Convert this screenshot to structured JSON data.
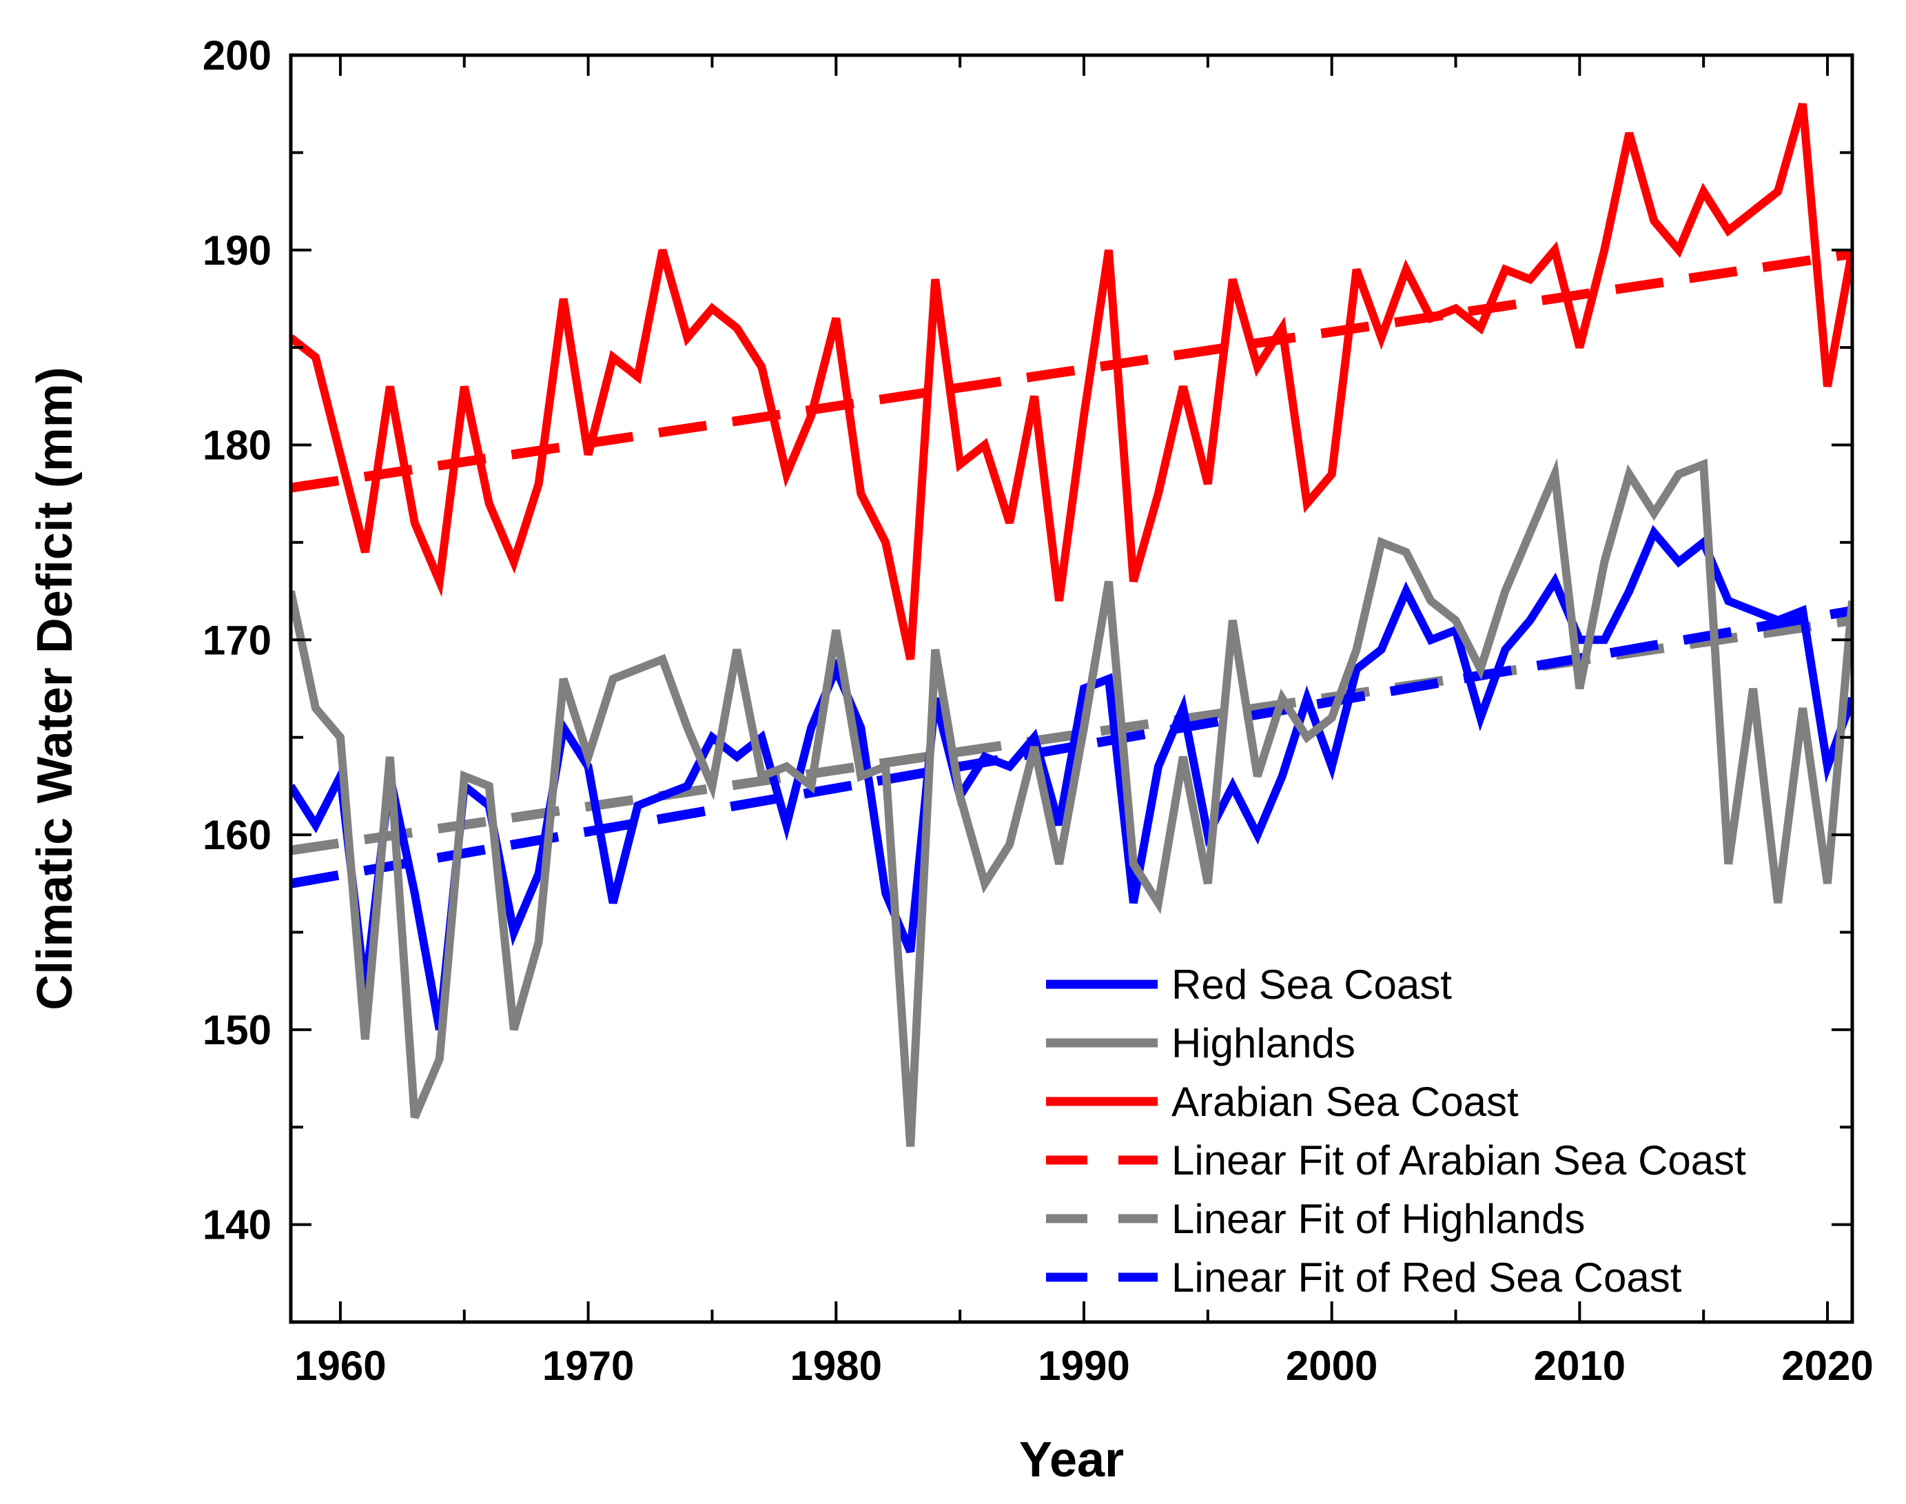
{
  "chart_data": {
    "type": "line",
    "title": "",
    "xlabel": "Year",
    "ylabel": "Climatic Water Deficit (mm)",
    "xlim": [
      1958,
      2021
    ],
    "ylim": [
      135,
      200
    ],
    "x_ticks": [
      1960,
      1970,
      1980,
      1990,
      2000,
      2010,
      2020
    ],
    "y_ticks": [
      140,
      150,
      160,
      170,
      180,
      190,
      200
    ],
    "grid": false,
    "legend_position": "bottom-right",
    "x": [
      1958,
      1959,
      1960,
      1961,
      1962,
      1963,
      1964,
      1965,
      1966,
      1967,
      1968,
      1969,
      1970,
      1971,
      1972,
      1973,
      1974,
      1975,
      1976,
      1977,
      1978,
      1979,
      1980,
      1981,
      1982,
      1983,
      1984,
      1985,
      1986,
      1987,
      1988,
      1989,
      1990,
      1991,
      1992,
      1993,
      1994,
      1995,
      1996,
      1997,
      1998,
      1999,
      2000,
      2001,
      2002,
      2003,
      2004,
      2005,
      2006,
      2007,
      2008,
      2009,
      2010,
      2011,
      2012,
      2013,
      2014,
      2015,
      2016,
      2017,
      2018,
      2019,
      2020,
      2021
    ],
    "series": [
      {
        "name": "Red Sea Coast",
        "color": "#0000ff",
        "dashed": false,
        "values": [
          162.5,
          160.5,
          163.0,
          152.0,
          163.0,
          157.0,
          150.0,
          162.5,
          161.5,
          155.0,
          158.0,
          165.5,
          163.5,
          156.5,
          161.5,
          162.0,
          162.5,
          165.0,
          164.0,
          165.0,
          160.5,
          165.5,
          168.5,
          165.5,
          157.0,
          154.0,
          167.0,
          162.0,
          164.0,
          163.5,
          165.0,
          160.5,
          167.5,
          168.0,
          156.5,
          163.5,
          166.5,
          160.0,
          162.5,
          160.0,
          163.0,
          167.0,
          163.5,
          168.5,
          169.5,
          172.5,
          170.0,
          170.5,
          166.0,
          169.5,
          171.0,
          173.0,
          170.0,
          170.0,
          172.5,
          175.5,
          174.0,
          175.0,
          172.0,
          171.5,
          171.0,
          171.5,
          163.5,
          167.0
        ]
      },
      {
        "name": "Highlands",
        "color": "#808080",
        "dashed": false,
        "values": [
          172.5,
          166.5,
          165.0,
          149.5,
          164.0,
          145.5,
          148.5,
          163.0,
          162.5,
          150.0,
          154.5,
          168.0,
          164.0,
          168.0,
          168.5,
          169.0,
          165.5,
          162.5,
          169.5,
          163.0,
          163.5,
          162.5,
          170.5,
          163.0,
          163.5,
          144.0,
          169.5,
          162.0,
          157.5,
          159.5,
          164.5,
          158.5,
          165.5,
          173.0,
          158.5,
          156.5,
          164.0,
          157.5,
          171.0,
          163.0,
          167.0,
          165.0,
          166.0,
          169.5,
          175.0,
          174.5,
          172.0,
          171.0,
          168.5,
          172.5,
          175.5,
          178.5,
          167.5,
          174.0,
          178.5,
          176.5,
          178.5,
          179.0,
          158.5,
          167.5,
          156.5,
          166.5,
          157.5,
          172.0
        ]
      },
      {
        "name": "Arabian Sea Coast",
        "color": "#ff0000",
        "dashed": false,
        "values": [
          185.5,
          184.5,
          179.5,
          174.5,
          183.0,
          176.0,
          173.0,
          183.0,
          177.0,
          174.0,
          178.0,
          187.5,
          179.5,
          184.5,
          183.5,
          190.0,
          185.5,
          187.0,
          186.0,
          184.0,
          178.5,
          181.5,
          186.5,
          177.5,
          175.0,
          169.0,
          188.5,
          179.0,
          180.0,
          176.0,
          182.5,
          172.0,
          181.5,
          190.0,
          173.0,
          177.5,
          183.0,
          178.0,
          188.5,
          184.0,
          186.0,
          177.0,
          178.5,
          189.0,
          185.5,
          189.0,
          186.5,
          187.0,
          186.0,
          189.0,
          188.5,
          190.0,
          185.0,
          190.0,
          196.0,
          191.5,
          190.0,
          193.0,
          191.0,
          192.0,
          193.0,
          197.5,
          183.0,
          190.0
        ]
      },
      {
        "name": "Linear Fit of Arabian Sea Coast",
        "color": "#ff0000",
        "dashed": true,
        "fit": [
          [
            1958,
            177.8
          ],
          [
            2021,
            189.8
          ]
        ]
      },
      {
        "name": "Linear Fit of Highlands",
        "color": "#808080",
        "dashed": true,
        "fit": [
          [
            1958,
            159.2
          ],
          [
            2021,
            171.0
          ]
        ]
      },
      {
        "name": "Linear Fit of Red Sea Coast",
        "color": "#0000ff",
        "dashed": true,
        "fit": [
          [
            1958,
            157.5
          ],
          [
            2021,
            171.5
          ]
        ]
      }
    ]
  }
}
